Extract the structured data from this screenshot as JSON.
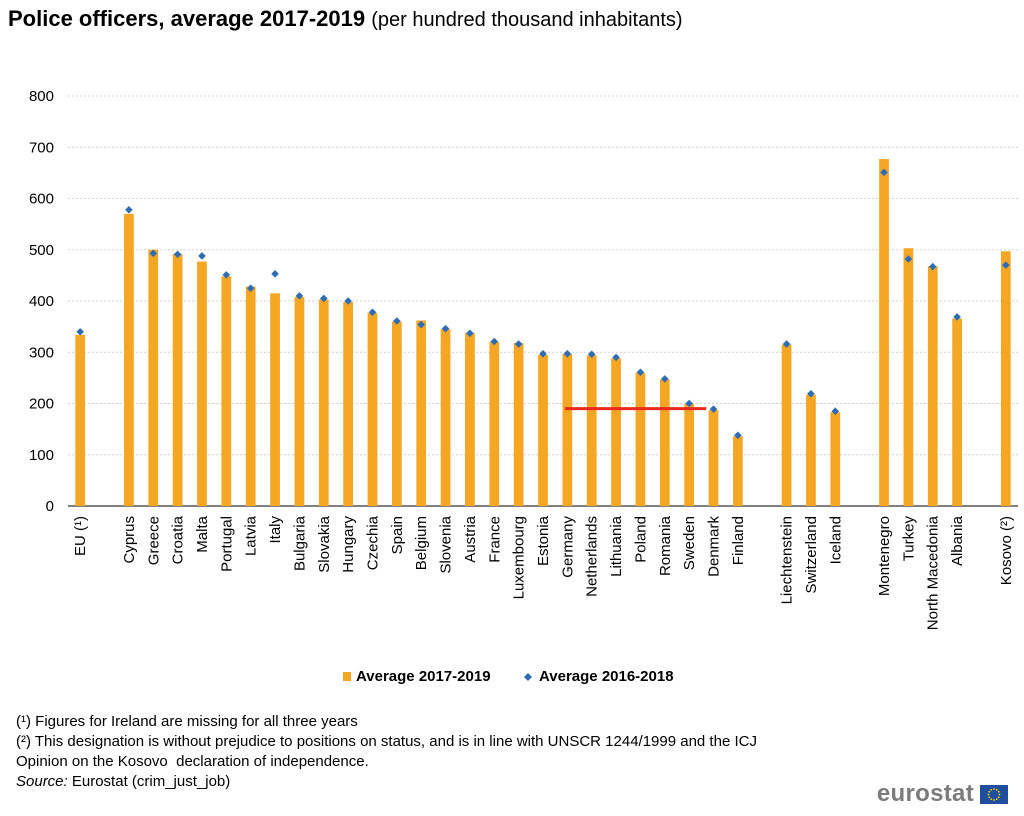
{
  "title": {
    "main": "Police officers, average 2017-2019",
    "sub": "(per hundred thousand inhabitants)"
  },
  "chart_data": {
    "type": "bar",
    "categories": [
      "EU (¹)",
      "Cyprus",
      "Greece",
      "Croatia",
      "Malta",
      "Portugal",
      "Latvia",
      "Italy",
      "Bulgaria",
      "Slovakia",
      "Hungary",
      "Czechia",
      "Spain",
      "Belgium",
      "Slovenia",
      "Austria",
      "France",
      "Luxembourg",
      "Estonia",
      "Germany",
      "Netherlands",
      "Lithuania",
      "Poland",
      "Romania",
      "Sweden",
      "Denmark",
      "Finland",
      "Liechtenstein",
      "Switzerland",
      "Iceland",
      "Montenegro",
      "Turkey",
      "North Macedonia",
      "Albania",
      "Kosovo (²)"
    ],
    "groups": [
      [
        0
      ],
      [
        1,
        26
      ],
      [
        27,
        29
      ],
      [
        30,
        33
      ],
      [
        34
      ]
    ],
    "series": [
      {
        "name": "Average 2017-2019",
        "kind": "bar",
        "color": "#f5a623",
        "values": [
          334,
          570,
          500,
          492,
          477,
          448,
          428,
          415,
          408,
          403,
          398,
          377,
          360,
          362,
          345,
          338,
          320,
          318,
          295,
          297,
          294,
          288,
          260,
          247,
          199,
          187,
          136,
          315,
          217,
          183,
          677,
          503,
          468,
          366,
          497
        ]
      },
      {
        "name": "Average 2016-2018",
        "kind": "marker",
        "color": "#2e6db4",
        "values": [
          340,
          578,
          493,
          491,
          488,
          451,
          425,
          453,
          410,
          405,
          400,
          378,
          361,
          354,
          346,
          337,
          321,
          316,
          297,
          297,
          296,
          290,
          261,
          248,
          200,
          189,
          138,
          316,
          219,
          185,
          651,
          482,
          467,
          369,
          470
        ]
      }
    ],
    "reference_line": {
      "value": 190,
      "from": "Germany",
      "to": "Sweden",
      "color": "#e8291c"
    },
    "ylim": [
      0,
      800
    ],
    "yticks": [
      0,
      100,
      200,
      300,
      400,
      500,
      600,
      700,
      800
    ],
    "grid": true,
    "legend": "bottom"
  },
  "footnotes": [
    "(¹) Figures for Ireland are missing for all three years",
    "(²) This designation is without prejudice to positions on status, and is in line with UNSCR 1244/1999 and the ICJ",
    "Opinion on the Kosovo  declaration of independence."
  ],
  "source": {
    "label": "Source:",
    "text": " Eurostat (crim_just_job)"
  },
  "logo": {
    "text": "eurostat"
  }
}
